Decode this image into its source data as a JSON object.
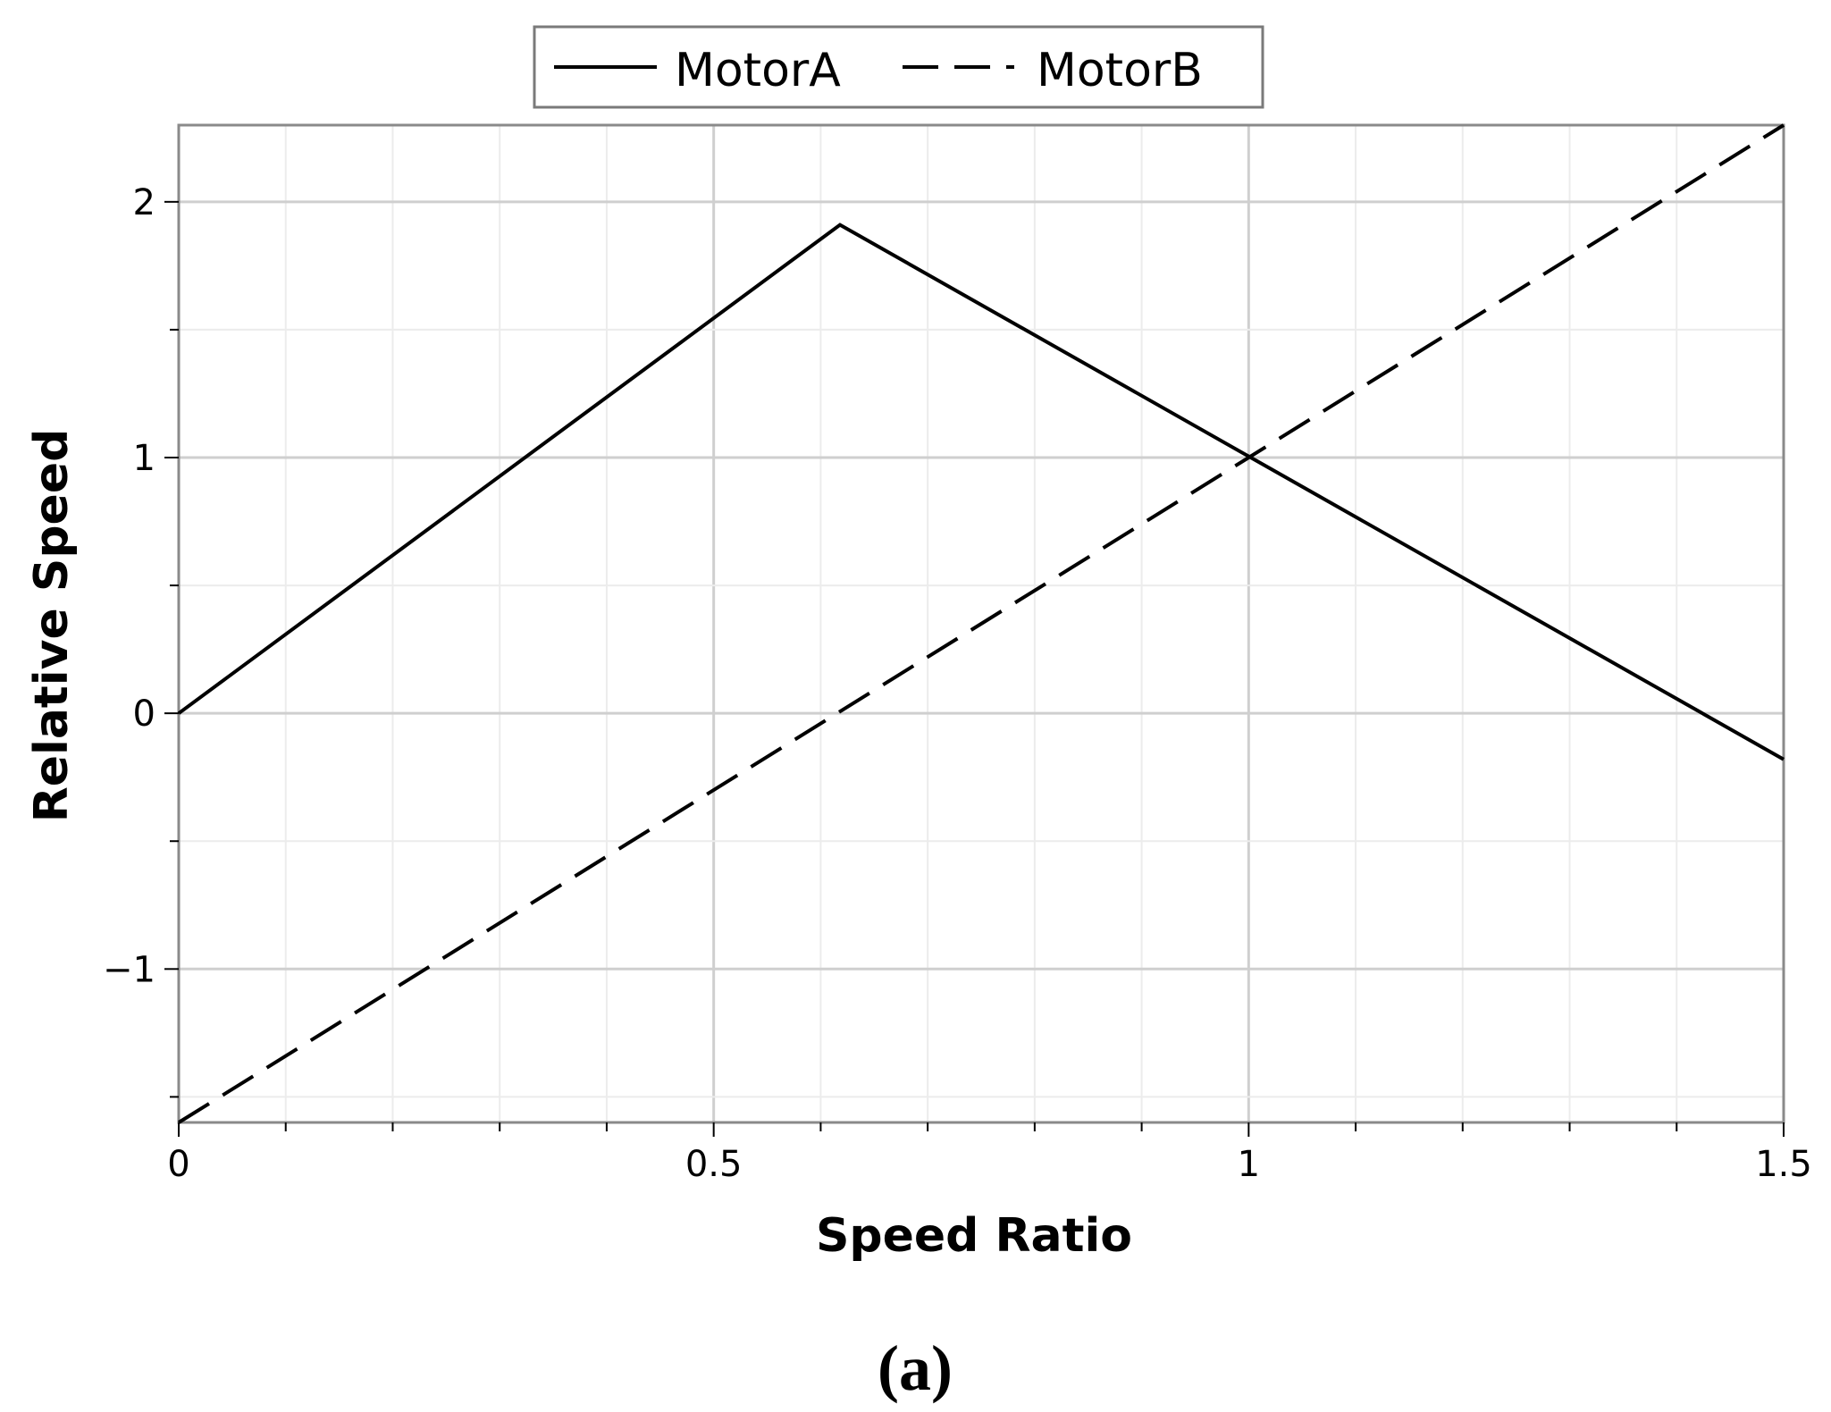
{
  "chart_data": {
    "type": "line",
    "xlabel": "Speed Ratio",
    "ylabel": "Relative Speed",
    "xlim": [
      0,
      1.5
    ],
    "ylim": [
      -1.6,
      2.3
    ],
    "xticks": [
      0,
      0.5,
      1,
      1.5
    ],
    "xtick_labels": [
      "0",
      "0.5",
      "1",
      "1.5"
    ],
    "yticks": [
      -1,
      0,
      1,
      2
    ],
    "ytick_labels": [
      "−1",
      "0",
      "1",
      "2"
    ],
    "grid": true,
    "legend_position": "top-center",
    "caption": "(a)",
    "series": [
      {
        "name": "MotorA",
        "style": "solid",
        "color": "#000000",
        "x": [
          0,
          0.618,
          1.5
        ],
        "y": [
          0,
          1.91,
          -0.18
        ]
      },
      {
        "name": "MotorB",
        "style": "dashed",
        "color": "#000000",
        "x": [
          0,
          1.5
        ],
        "y": [
          -1.6,
          2.3
        ]
      }
    ]
  }
}
